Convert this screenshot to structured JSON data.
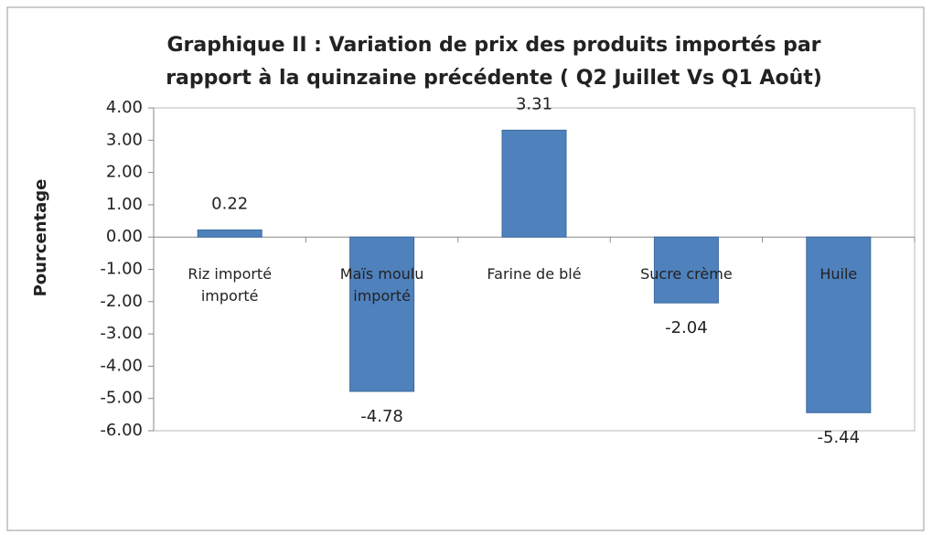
{
  "chart_data": {
    "type": "bar",
    "title": [
      "Graphique II : Variation de prix des produits importés  par",
      "rapport à la quinzaine précédente ( Q2 Juillet Vs Q1 Août)"
    ],
    "ylabel": "Pourcentage",
    "categories": [
      "Riz importé importé",
      "Maïs moulu importé",
      "Farine de blé",
      "Sucre crème",
      "Huile"
    ],
    "values": [
      0.22,
      -4.78,
      3.31,
      -2.04,
      -5.44
    ],
    "color": "#4f81bd",
    "ylim": [
      -6,
      4
    ],
    "yticks": [
      {
        "value": 4,
        "label": "4.00"
      },
      {
        "value": 3,
        "label": "3.00"
      },
      {
        "value": 2,
        "label": "2.00"
      },
      {
        "value": 1,
        "label": "1.00"
      },
      {
        "value": 0,
        "label": "0.00"
      },
      {
        "value": -1,
        "label": "-1.00"
      },
      {
        "value": -2,
        "label": "-2.00"
      },
      {
        "value": -3,
        "label": "-3.00"
      },
      {
        "value": -4,
        "label": "-4.00"
      },
      {
        "value": -5,
        "label": "-5.00"
      },
      {
        "value": -6,
        "label": "-6.00"
      }
    ],
    "grid": false
  }
}
